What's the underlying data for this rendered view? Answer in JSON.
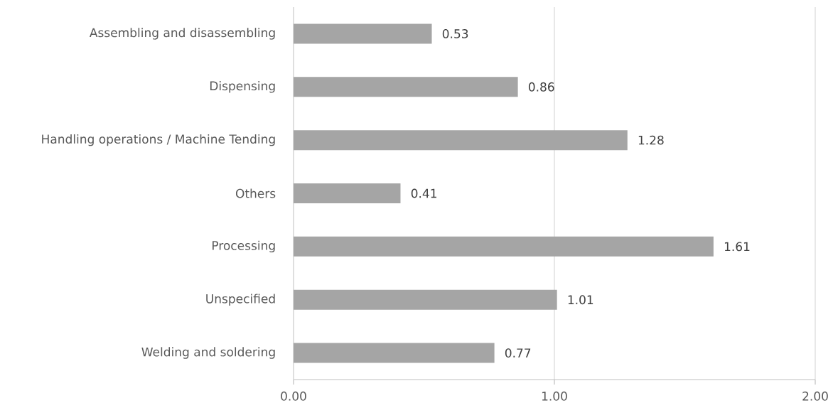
{
  "chart_data": {
    "type": "bar",
    "orientation": "horizontal",
    "categories": [
      "Assembling and disassembling",
      "Dispensing",
      "Handling operations / Machine Tending",
      "Others",
      "Processing",
      "Unspecified",
      "Welding and soldering"
    ],
    "values": [
      0.53,
      0.86,
      1.28,
      0.41,
      1.61,
      1.01,
      0.77
    ],
    "color": "#a5a5a5",
    "xlim": [
      0,
      2
    ],
    "xticks": [
      {
        "value": 0,
        "label": "0.00"
      },
      {
        "value": 1,
        "label": "1.00"
      },
      {
        "value": 2,
        "label": "2.00"
      }
    ],
    "grid": "x",
    "data_labels": true
  }
}
